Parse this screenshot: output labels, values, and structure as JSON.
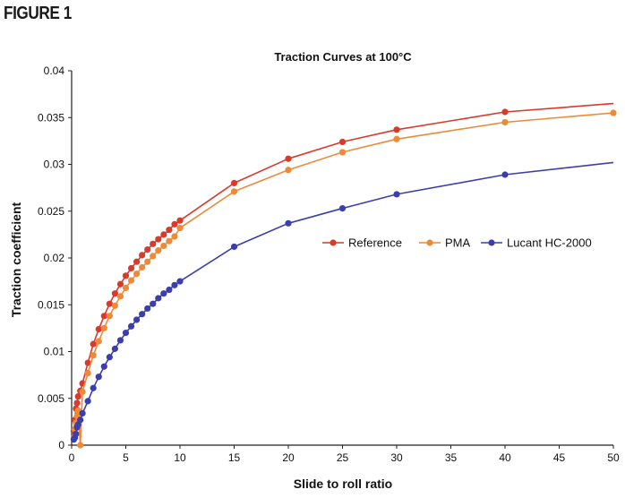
{
  "figure_label": "FIGURE 1",
  "chart_data": {
    "type": "line",
    "title": "Traction Curves at 100°C",
    "xlabel": "Slide to roll ratio",
    "ylabel": "Traction coefficient",
    "xlim": [
      0,
      50
    ],
    "ylim": [
      0,
      0.04
    ],
    "x_ticks": [
      0,
      5,
      10,
      15,
      20,
      25,
      30,
      35,
      40,
      45,
      50
    ],
    "x_tick_labels": [
      "0",
      "5",
      "10",
      "15",
      "20",
      "25",
      "30",
      "35",
      "40",
      "45",
      "50"
    ],
    "y_ticks": [
      0,
      0.005,
      0.01,
      0.015,
      0.02,
      0.025,
      0.03,
      0.035,
      0.04
    ],
    "y_tick_labels": [
      "0",
      "0.005",
      "0.01",
      "0.015",
      "0.02",
      "0.025",
      "0.03",
      "0.035",
      "0.04"
    ],
    "grid": false,
    "legend_position": "center-right",
    "series": [
      {
        "name": "Reference",
        "color": "#d93a2b",
        "points": [
          [
            0.2,
            0.0015
          ],
          [
            0.3,
            0.0027
          ],
          [
            0.4,
            0.0039
          ],
          [
            0.5,
            0.0045
          ],
          [
            0.6,
            0.0052
          ],
          [
            0.8,
            0.0058
          ],
          [
            1.0,
            0.0066
          ],
          [
            1.5,
            0.0088
          ],
          [
            2.0,
            0.0108
          ],
          [
            2.5,
            0.0124
          ],
          [
            3.0,
            0.0138
          ],
          [
            3.5,
            0.0151
          ],
          [
            4.0,
            0.0162
          ],
          [
            4.5,
            0.0172
          ],
          [
            5.0,
            0.0181
          ],
          [
            5.5,
            0.0189
          ],
          [
            6.0,
            0.0196
          ],
          [
            6.5,
            0.0203
          ],
          [
            7.0,
            0.0209
          ],
          [
            7.5,
            0.0215
          ],
          [
            8.0,
            0.022
          ],
          [
            8.5,
            0.0225
          ],
          [
            9.0,
            0.023
          ],
          [
            9.5,
            0.0236
          ],
          [
            10.0,
            0.024
          ],
          [
            15,
            0.028
          ],
          [
            20,
            0.0306
          ],
          [
            25,
            0.0324
          ],
          [
            30,
            0.0337
          ],
          [
            40,
            0.0356
          ],
          [
            50,
            0.0365
          ]
        ],
        "markers_until_x": 40
      },
      {
        "name": "PMA",
        "color": "#ee8a37",
        "points": [
          [
            0.2,
            0.0008
          ],
          [
            0.3,
            0.0017
          ],
          [
            0.4,
            0.0024
          ],
          [
            0.5,
            0.0031
          ],
          [
            0.6,
            0.0037
          ],
          [
            0.8,
            0.0
          ],
          [
            1.0,
            0.0057
          ],
          [
            1.5,
            0.0077
          ],
          [
            2.0,
            0.0096
          ],
          [
            2.5,
            0.0111
          ],
          [
            3.0,
            0.0125
          ],
          [
            3.5,
            0.0138
          ],
          [
            4.0,
            0.0149
          ],
          [
            4.5,
            0.0159
          ],
          [
            5.0,
            0.0168
          ],
          [
            5.5,
            0.0176
          ],
          [
            6.0,
            0.0183
          ],
          [
            6.5,
            0.019
          ],
          [
            7.0,
            0.0196
          ],
          [
            7.5,
            0.0202
          ],
          [
            8.0,
            0.0208
          ],
          [
            8.5,
            0.0213
          ],
          [
            9.0,
            0.0218
          ],
          [
            9.5,
            0.0223
          ],
          [
            10.0,
            0.0232
          ],
          [
            15,
            0.0271
          ],
          [
            20,
            0.0294
          ],
          [
            25,
            0.0313
          ],
          [
            30,
            0.0327
          ],
          [
            40,
            0.0345
          ],
          [
            50,
            0.0355
          ]
        ],
        "markers_until_x": 50
      },
      {
        "name": "Lucant HC-2000",
        "color": "#3b3fae",
        "points": [
          [
            0.2,
            0.0006
          ],
          [
            0.3,
            0.0008
          ],
          [
            0.4,
            0.0012
          ],
          [
            0.5,
            0.0019
          ],
          [
            0.6,
            0.0022
          ],
          [
            0.8,
            0.0027
          ],
          [
            1.0,
            0.0034
          ],
          [
            1.5,
            0.0047
          ],
          [
            2.0,
            0.0061
          ],
          [
            2.5,
            0.0073
          ],
          [
            3.0,
            0.0084
          ],
          [
            3.5,
            0.0094
          ],
          [
            4.0,
            0.0103
          ],
          [
            4.5,
            0.0112
          ],
          [
            5.0,
            0.012
          ],
          [
            5.5,
            0.0127
          ],
          [
            6.0,
            0.0134
          ],
          [
            6.5,
            0.014
          ],
          [
            7.0,
            0.0146
          ],
          [
            7.5,
            0.0151
          ],
          [
            8.0,
            0.0157
          ],
          [
            8.5,
            0.0162
          ],
          [
            9.0,
            0.0166
          ],
          [
            9.5,
            0.0171
          ],
          [
            10.0,
            0.0175
          ],
          [
            15,
            0.0212
          ],
          [
            20,
            0.0237
          ],
          [
            25,
            0.0253
          ],
          [
            30,
            0.0268
          ],
          [
            40,
            0.0289
          ],
          [
            50,
            0.0302
          ]
        ],
        "markers_until_x": 40
      }
    ]
  }
}
